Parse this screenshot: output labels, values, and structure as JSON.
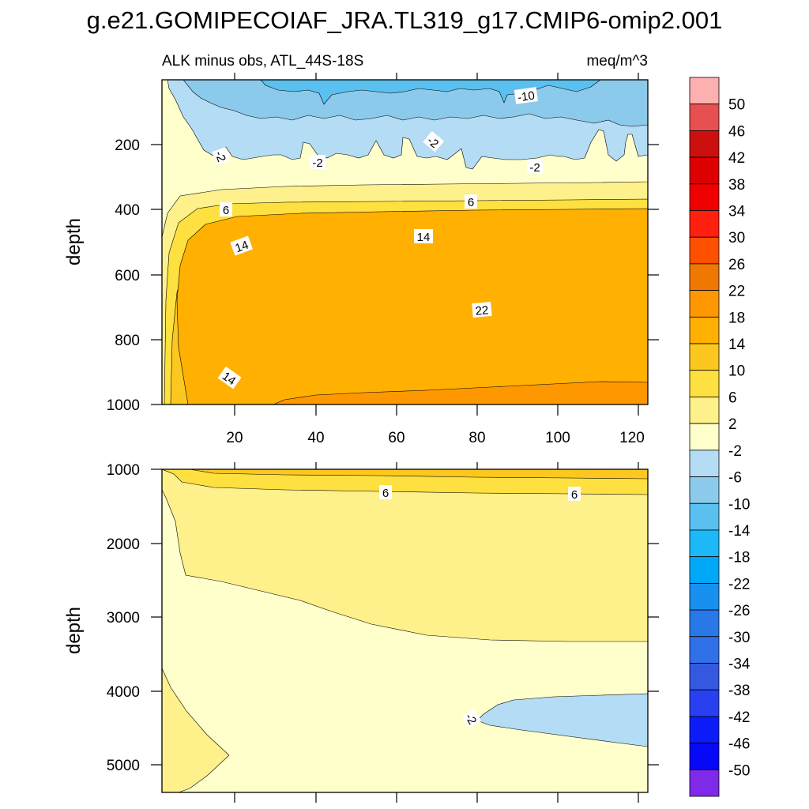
{
  "chart_data": {
    "type": "contour",
    "title": "g.e21.GOMIPECOIAF_JRA.TL319_g17.CMIP6-omip2.001",
    "subtitle_left": "ALK minus obs, ATL_44S-18S",
    "subtitle_right": "meq/m^3",
    "colorbar": {
      "levels": [
        "50",
        "46",
        "42",
        "38",
        "34",
        "30",
        "26",
        "22",
        "18",
        "14",
        "10",
        "6",
        "2",
        "-2",
        "-6",
        "-10",
        "-14",
        "-18",
        "-22",
        "-26",
        "-30",
        "-34",
        "-38",
        "-42",
        "-46",
        "-50"
      ],
      "colors": [
        "#fdb0b0",
        "#e65050",
        "#cc1010",
        "#dc0000",
        "#f00000",
        "#ff2010",
        "#ff5000",
        "#f07800",
        "#ff9800",
        "#ffb000",
        "#fcc820",
        "#fee040",
        "#fef08a",
        "#ffffcc",
        "#b4dcf4",
        "#8ccaec",
        "#5ac0f0",
        "#1cb8f8",
        "#00a8f8",
        "#1890f0",
        "#2878e8",
        "#3070e8",
        "#3458e0",
        "#2840f0",
        "#0c1cf8",
        "#0808f8",
        "#7e2ae8"
      ]
    },
    "panels": [
      {
        "name": "upper",
        "ylabel": "depth",
        "yticks": [
          "200",
          "400",
          "600",
          "800",
          "1000"
        ],
        "xticks": [
          "20",
          "40",
          "60",
          "80",
          "100",
          "120"
        ],
        "contour_labels": [
          "-10",
          "-2",
          "-2",
          "-2",
          "-2",
          "6",
          "6",
          "14",
          "14",
          "22",
          "14"
        ]
      },
      {
        "name": "lower",
        "ylabel": "depth",
        "yticks": [
          "1000",
          "2000",
          "3000",
          "4000",
          "5000"
        ],
        "contour_labels": [
          "6",
          "6",
          "-2"
        ]
      }
    ]
  }
}
